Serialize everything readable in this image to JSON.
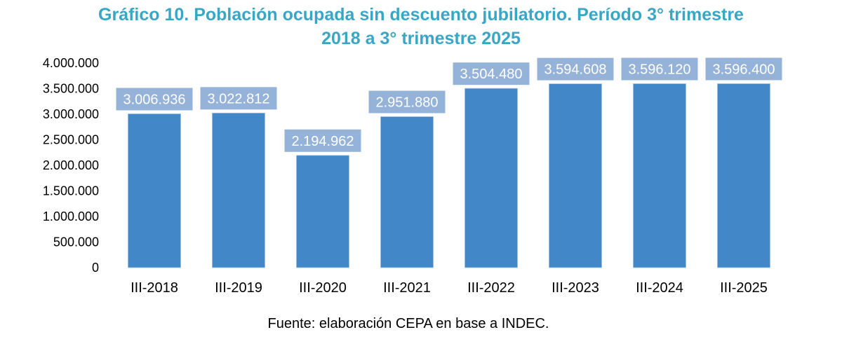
{
  "chart_data": {
    "type": "bar",
    "title_lines": [
      "Gráfico 10. Población ocupada sin descuento jubilatorio. Período 3° trimestre",
      "2018 a 3° trimestre 2025"
    ],
    "categories": [
      "III-2018",
      "III-2019",
      "III-2020",
      "III-2021",
      "III-2022",
      "III-2023",
      "III-2024",
      "III-2025"
    ],
    "values": [
      3006936,
      3022812,
      2194962,
      2951880,
      3504480,
      3594608,
      3596120,
      3596400
    ],
    "data_labels": [
      "3.006.936",
      "3.022.812",
      "2.194.962",
      "2.951.880",
      "3.504.480",
      "3.594.608",
      "3.596.120",
      "3.596.400"
    ],
    "xlabel": "",
    "ylabel": "",
    "ylim": [
      0,
      4000000
    ],
    "yticks": [
      0,
      500000,
      1000000,
      1500000,
      2000000,
      2500000,
      3000000,
      3500000,
      4000000
    ],
    "ytick_labels": [
      "0",
      "500.000",
      "1.000.000",
      "1.500.000",
      "2.000.000",
      "2.500.000",
      "3.000.000",
      "3.500.000",
      "4.000.000"
    ],
    "grid": false,
    "legend": "none",
    "colors": {
      "bar": "#4287C7",
      "label_bg": "#95B3D9",
      "label_text": "#FFFFFF",
      "title": "#3AA6C6"
    },
    "source": "Fuente: elaboración CEPA en base a INDEC."
  }
}
